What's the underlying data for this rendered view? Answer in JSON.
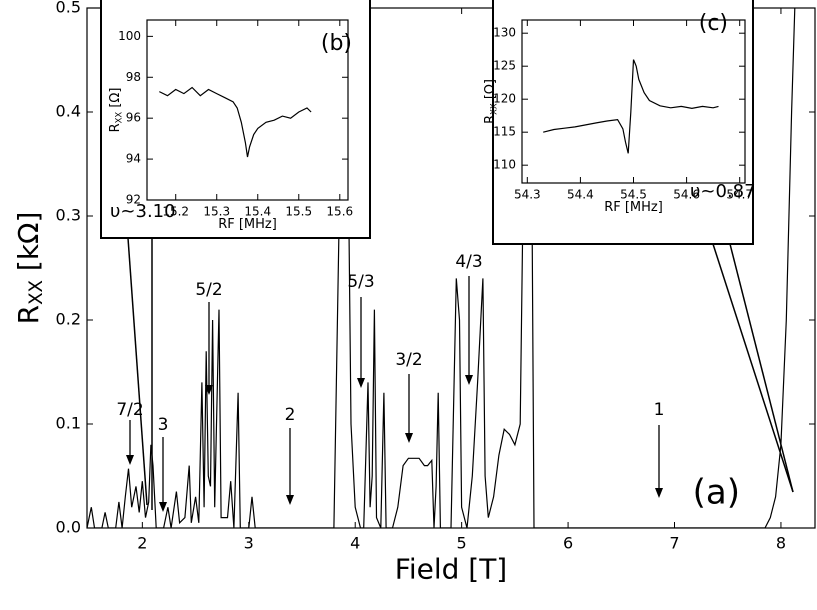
{
  "chart_data": [
    {
      "type": "line",
      "label": "(a)",
      "xlabel": "Field [T]",
      "ylabel_main": "R",
      "ylabel_sub": "XX",
      "ylabel_unit": " [kΩ]",
      "xlim": [
        1.48,
        8.32
      ],
      "ylim": [
        0,
        0.5
      ],
      "xticks": [
        2,
        3,
        4,
        5,
        6,
        7,
        8
      ],
      "yticks": [
        {
          "value": 0,
          "label": "0.0"
        },
        0.1,
        0.2,
        0.3,
        0.4,
        0.5
      ],
      "annotations": [
        "7/2",
        "3",
        "5/2",
        "2",
        "5/3",
        "3/2",
        "4/3",
        "1"
      ],
      "color": "#000000",
      "x": [
        1.48,
        1.52,
        1.55,
        1.62,
        1.65,
        1.68,
        1.75,
        1.78,
        1.81,
        1.84,
        1.87,
        1.9,
        1.94,
        1.97,
        2.0,
        2.03,
        2.06,
        2.08,
        2.1,
        2.13,
        2.2,
        2.24,
        2.27,
        2.32,
        2.35,
        2.4,
        2.44,
        2.46,
        2.5,
        2.53,
        2.56,
        2.58,
        2.6,
        2.62,
        2.64,
        2.66,
        2.68,
        2.72,
        2.74,
        2.8,
        2.83,
        2.86,
        2.9,
        2.92,
        3.0,
        3.03,
        3.06,
        3.8,
        3.85,
        3.88,
        3.92,
        3.96,
        4.0,
        4.05,
        4.08,
        4.12,
        4.14,
        4.16,
        4.18,
        4.2,
        4.24,
        4.27,
        4.29,
        4.35,
        4.4,
        4.45,
        4.5,
        4.6,
        4.65,
        4.68,
        4.72,
        4.74,
        4.76,
        4.78,
        4.8,
        4.9,
        4.95,
        4.98,
        5.0,
        5.05,
        5.1,
        5.15,
        5.2,
        5.22,
        5.25,
        5.3,
        5.35,
        5.4,
        5.45,
        5.5,
        5.55,
        5.6,
        5.65,
        5.68,
        7.85,
        7.9,
        7.95,
        8.0,
        8.05,
        8.1,
        8.13
      ],
      "values": [
        0,
        0.02,
        0,
        0,
        0.015,
        0,
        0,
        0.025,
        0,
        0.03,
        0.057,
        0.02,
        0.04,
        0.015,
        0.045,
        0.01,
        0.025,
        0.08,
        0.06,
        0,
        0,
        0.02,
        0,
        0.035,
        0.005,
        0.01,
        0.06,
        0.005,
        0.03,
        0.005,
        0.14,
        0.02,
        0.17,
        0.05,
        0.04,
        0.2,
        0.02,
        0.21,
        0.01,
        0.01,
        0.045,
        0,
        0.13,
        0,
        0,
        0.03,
        0,
        0,
        0.3,
        0.5,
        0.5,
        0.1,
        0.02,
        0,
        0,
        0.14,
        0.02,
        0.05,
        0.21,
        0.01,
        0,
        0.13,
        0,
        0,
        0.02,
        0.06,
        0.067,
        0.067,
        0.06,
        0.06,
        0.065,
        0,
        0.04,
        0.13,
        0,
        0,
        0.24,
        0.2,
        0.02,
        0,
        0.05,
        0.14,
        0.24,
        0.05,
        0.01,
        0.03,
        0.07,
        0.095,
        0.09,
        0.08,
        0.1,
        0.5,
        0.5,
        0,
        0,
        0.01,
        0.03,
        0.08,
        0.2,
        0.4,
        0.5
      ]
    },
    {
      "type": "line",
      "label": "(b)",
      "note": "υ~3.10",
      "xlabel": "RF [MHz]",
      "ylabel_main": "R",
      "ylabel_sub": "XX",
      "ylabel_unit": " [Ω]",
      "xlim": [
        15.13,
        15.62
      ],
      "ylim": [
        92,
        100.8
      ],
      "xticks": [
        15.2,
        15.3,
        15.4,
        15.5,
        15.6
      ],
      "yticks": [
        92,
        94,
        96,
        98,
        100
      ],
      "color": "#000000",
      "x": [
        15.16,
        15.18,
        15.2,
        15.22,
        15.24,
        15.26,
        15.28,
        15.3,
        15.32,
        15.34,
        15.35,
        15.36,
        15.37,
        15.375,
        15.38,
        15.39,
        15.4,
        15.42,
        15.44,
        15.46,
        15.48,
        15.5,
        15.52,
        15.53
      ],
      "values": [
        97.3,
        97.1,
        97.4,
        97.2,
        97.5,
        97.1,
        97.4,
        97.2,
        97.0,
        96.8,
        96.5,
        95.8,
        94.8,
        94.1,
        94.6,
        95.2,
        95.5,
        95.8,
        95.9,
        96.1,
        96.0,
        96.3,
        96.5,
        96.3
      ]
    },
    {
      "type": "line",
      "label": "(c)",
      "note": "υ~0.87",
      "xlabel": "RF [MHz]",
      "ylabel_main": "R",
      "ylabel_sub": "XX",
      "ylabel_unit": " [Ω]",
      "xlim": [
        54.29,
        54.71
      ],
      "ylim": [
        107.3,
        132
      ],
      "xticks": [
        54.3,
        54.4,
        54.5,
        54.6,
        54.7
      ],
      "yticks": [
        110,
        115,
        120,
        125,
        130
      ],
      "color": "#000000",
      "x": [
        54.33,
        54.35,
        54.37,
        54.39,
        54.41,
        54.43,
        54.45,
        54.47,
        54.48,
        54.485,
        54.49,
        54.495,
        54.5,
        54.505,
        54.51,
        54.52,
        54.53,
        54.55,
        54.57,
        54.59,
        54.61,
        54.63,
        54.65,
        54.66
      ],
      "values": [
        115.0,
        115.4,
        115.6,
        115.8,
        116.1,
        116.4,
        116.7,
        116.9,
        115.5,
        113.5,
        111.8,
        118.0,
        126.0,
        125.0,
        123.0,
        121.0,
        119.8,
        119.0,
        118.7,
        118.9,
        118.6,
        118.9,
        118.7,
        118.9
      ]
    }
  ]
}
